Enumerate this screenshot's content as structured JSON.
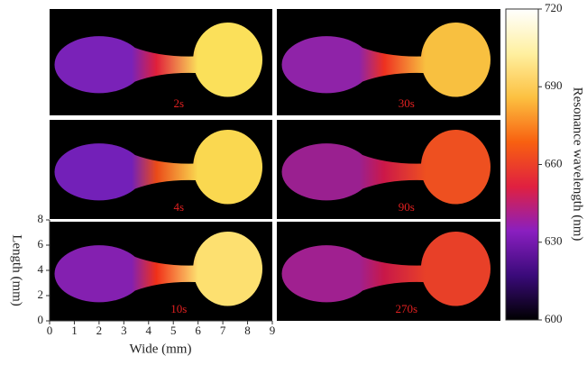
{
  "chart_data": {
    "type": "heatmap-panels",
    "xlabel": "Wide (mm)",
    "ylabel": "Length (mm)",
    "xlim": [
      0,
      9
    ],
    "xticks": [
      0,
      1,
      2,
      3,
      4,
      5,
      6,
      7,
      8,
      9
    ],
    "ylim": [
      0,
      8
    ],
    "yticks": [
      0,
      2,
      4,
      6,
      8
    ],
    "panels": [
      {
        "label": "2s",
        "colors": [
          "#7a22b8",
          "#e0203a",
          "#fbe05a"
        ]
      },
      {
        "label": "30s",
        "colors": [
          "#8f23a8",
          "#ee3020",
          "#f8c040"
        ]
      },
      {
        "label": "4s",
        "colors": [
          "#7320b8",
          "#ea4a18",
          "#fad850"
        ]
      },
      {
        "label": "90s",
        "colors": [
          "#9a2090",
          "#cc1848",
          "#ee5020"
        ]
      },
      {
        "label": "10s",
        "colors": [
          "#8420b0",
          "#f03018",
          "#fde070"
        ]
      },
      {
        "label": "270s",
        "colors": [
          "#a02090",
          "#c81848",
          "#e84028"
        ]
      }
    ],
    "colorbar": {
      "label": "Resonance wavelength (nm)",
      "lim": [
        600,
        720
      ],
      "ticks": [
        600,
        630,
        660,
        690,
        720
      ],
      "colors": [
        "#000000",
        "#3a0a7a",
        "#8a1fc0",
        "#e02040",
        "#f86010",
        "#fcc040",
        "#fff0a0",
        "#ffffff"
      ]
    }
  }
}
